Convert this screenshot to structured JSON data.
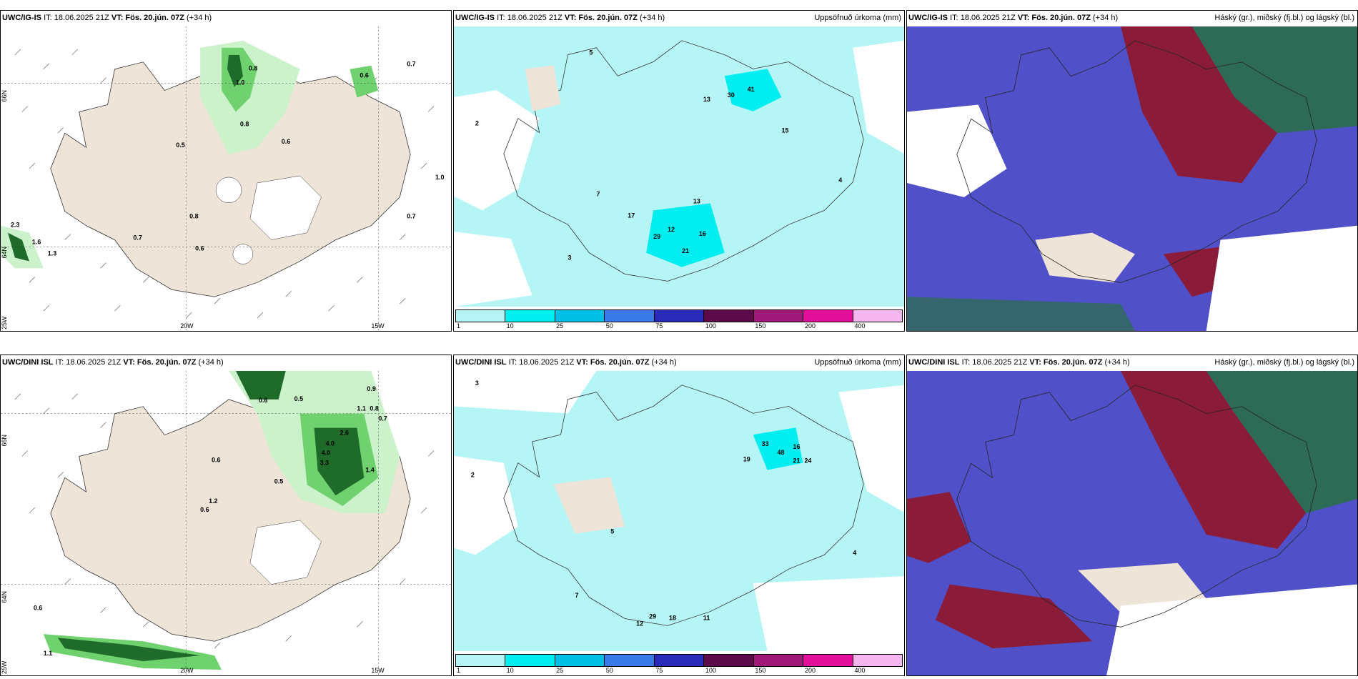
{
  "panels": [
    {
      "model": "UWC/IG-IS",
      "it": "IT: 18.06.2025 21Z",
      "vt_label": "VT:",
      "vt": "Fös. 20.jún. 07Z",
      "lead": "(+34 h)",
      "right": ""
    },
    {
      "model": "UWC/IG-IS",
      "it": "IT: 18.06.2025 21Z",
      "vt_label": "VT:",
      "vt": "Fös. 20.jún. 07Z",
      "lead": "(+34 h)",
      "right": "Uppsöfnuð úrkoma (mm)"
    },
    {
      "model": "UWC/IG-IS",
      "it": "IT: 18.06.2025 21Z",
      "vt_label": "VT:",
      "vt": "Fös. 20.jún. 07Z",
      "lead": "(+34 h)",
      "right": "Háský (gr.), miðský (fj.bl.) og lágský (bl.)"
    },
    {
      "model": "UWC/DINI ISL",
      "it": "IT: 18.06.2025 21Z",
      "vt_label": "VT:",
      "vt": "Fös. 20.jún. 07Z",
      "lead": "(+34 h)",
      "right": ""
    },
    {
      "model": "UWC/DINI ISL",
      "it": "IT: 18.06.2025 21Z",
      "vt_label": "VT:",
      "vt": "Fös. 20.jún. 07Z",
      "lead": "(+34 h)",
      "right": "Uppsöfnuð úrkoma (mm)"
    },
    {
      "model": "UWC/DINI ISL",
      "it": "IT: 18.06.2025 21Z",
      "vt_label": "VT:",
      "vt": "Fös. 20.jún. 07Z",
      "lead": "(+34 h)",
      "right": "Háský (gr.), miðský (fj.bl.) og lágský (bl.)"
    }
  ],
  "axes": {
    "lat66": "66N",
    "lat64": "64N",
    "lon25": "25W",
    "lon20": "20W",
    "lon15": "15W"
  },
  "colorbar": {
    "labels": [
      "1",
      "10",
      "25",
      "50",
      "75",
      "100",
      "150",
      "200",
      "400"
    ],
    "colors": [
      "#b6f5f5",
      "#00eef0",
      "#00bfe6",
      "#3a7ae8",
      "#2a2ab8",
      "#5c0a4a",
      "#a01878",
      "#e0109a",
      "#f5b6f0"
    ]
  },
  "colors": {
    "land": "#efe4d8",
    "precip_light": "#ccf2cc",
    "precip_mid": "#6fd26f",
    "precip_heavy": "#1f6b2a",
    "rain_field": "#b6f5f5",
    "high_cloud": "#2e6b56",
    "mid_cloud": "#8a1c3a",
    "low_cloud": "#5050c8"
  },
  "precip_top_labels": [
    "0.8",
    "1.0",
    "0.7",
    "0.6",
    "0.5",
    "0.7",
    "0.8",
    "0.6",
    "0.7",
    "1.0",
    "2.3",
    "1.6",
    "1.3",
    "0.8",
    "0.6"
  ],
  "precip_bottom_labels": [
    "0.9",
    "0.5",
    "0.6",
    "1.1",
    "0.8",
    "2.6",
    "4.0",
    "3.3",
    "1.4",
    "1.2",
    "0.5",
    "0.6",
    "0.6",
    "1.1",
    "0.6",
    "0.7",
    "4.0"
  ],
  "rain_top_labels": [
    "41",
    "30",
    "13",
    "17",
    "29",
    "12",
    "21",
    "16",
    "15",
    "13",
    "2",
    "5",
    "7",
    "3",
    "4"
  ],
  "rain_bottom_labels": [
    "33",
    "48",
    "19",
    "16",
    "21",
    "24",
    "29",
    "18",
    "12",
    "11",
    "3",
    "2",
    "5",
    "7",
    "4"
  ]
}
